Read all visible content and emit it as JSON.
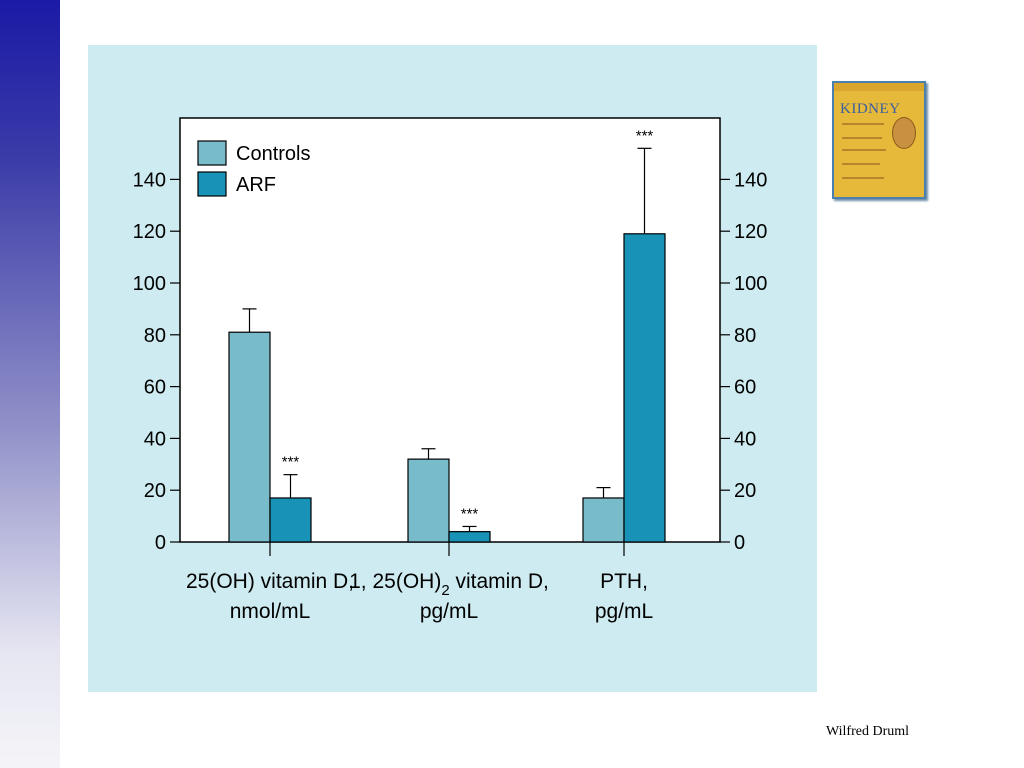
{
  "credit": "Wilfred Druml",
  "book": {
    "title": "KIDNEY"
  },
  "colors": {
    "controls": "#78bccc",
    "arf": "#1892b6",
    "panel": "#cdebf0"
  },
  "chart_data": {
    "type": "bar",
    "categories": [
      {
        "line1": "25(OH) vitamin D,",
        "line2": "nmol/mL"
      },
      {
        "line1": "1, 25(OH)",
        "sub": "2",
        "line1_after": " vitamin D,",
        "line2": "pg/mL"
      },
      {
        "line1": "PTH,",
        "line2": "pg/mL"
      }
    ],
    "series": [
      {
        "name": "Controls",
        "values": [
          81,
          32,
          17
        ],
        "errors": [
          9,
          4,
          4
        ],
        "annotations": [
          "",
          "",
          ""
        ]
      },
      {
        "name": "ARF",
        "values": [
          17,
          4,
          119
        ],
        "errors": [
          9,
          2,
          33
        ],
        "annotations": [
          "***",
          "***",
          "***"
        ]
      }
    ],
    "yticks_left": [
      0,
      20,
      40,
      60,
      80,
      100,
      120,
      140
    ],
    "yticks_right": [
      0,
      20,
      40,
      60,
      80,
      100,
      120,
      140
    ],
    "ylim": [
      0,
      160
    ],
    "legend": "top-left"
  }
}
